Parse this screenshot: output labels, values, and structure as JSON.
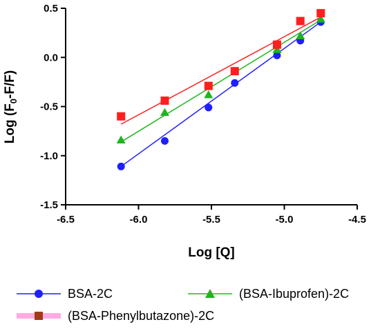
{
  "chart_data": {
    "type": "scatter",
    "title": "",
    "xlabel": "Log [Q]",
    "ylabel_main": "Log (F",
    "ylabel_sub": "0",
    "ylabel_rest": "-F/F)",
    "xlim": [
      -6.5,
      -4.5
    ],
    "ylim": [
      -1.5,
      0.5
    ],
    "xticks": [
      -6.5,
      -6.0,
      -5.5,
      -5.0,
      -4.5
    ],
    "xtick_labels": [
      "-6.5",
      "-6.0",
      "-5.5",
      "-5.0",
      "-4.5"
    ],
    "yticks": [
      0.5,
      0.0,
      -0.5,
      -1.0,
      -1.5
    ],
    "ytick_labels": [
      "0.5",
      "0.0",
      "-0.5",
      "-1.0",
      "-1.5"
    ],
    "grid": false,
    "legend_position": "bottom",
    "series": [
      {
        "name": "BSA-2C",
        "marker": "circle",
        "color": "#1f1fff",
        "x": [
          -6.12,
          -5.82,
          -5.52,
          -5.34,
          -5.05,
          -4.89,
          -4.75
        ],
        "y": [
          -1.11,
          -0.85,
          -0.51,
          -0.26,
          0.02,
          0.17,
          0.36
        ],
        "fit": [
          [
            -6.12,
            -1.11
          ],
          [
            -4.75,
            0.36
          ]
        ]
      },
      {
        "name": "(BSA-Ibuprofen)-2C",
        "marker": "triangle",
        "color": "#1db51d",
        "x": [
          -6.12,
          -5.82,
          -5.52,
          -5.05,
          -4.89,
          -4.75
        ],
        "y": [
          -0.84,
          -0.56,
          -0.38,
          0.08,
          0.22,
          0.39
        ],
        "fit": [
          [
            -6.12,
            -0.86
          ],
          [
            -4.75,
            0.38
          ]
        ]
      },
      {
        "name": "(BSA-Phenylbutazone)-2C",
        "marker": "square",
        "color": "#ff1f1f",
        "x": [
          -6.12,
          -5.82,
          -5.52,
          -5.34,
          -5.05,
          -4.89,
          -4.75
        ],
        "y": [
          -0.6,
          -0.44,
          -0.29,
          -0.14,
          0.13,
          0.37,
          0.45
        ],
        "fit": [
          [
            -6.12,
            -0.68
          ],
          [
            -4.75,
            0.41
          ]
        ]
      }
    ]
  }
}
